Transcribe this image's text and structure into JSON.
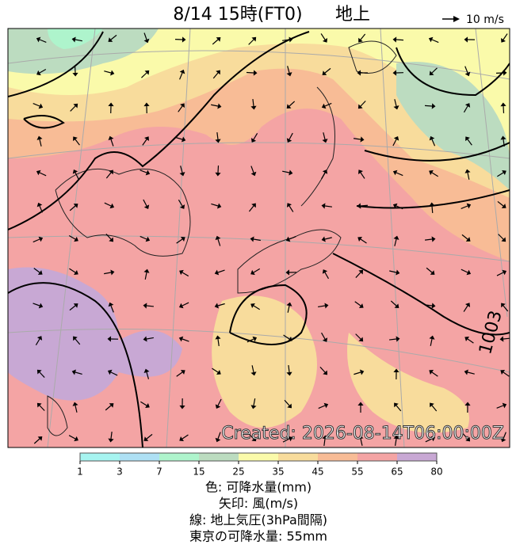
{
  "header": {
    "title": "8/14  15時(FT0)",
    "level": "地上",
    "wind_scale": "10 m/s"
  },
  "map": {
    "isobar_label": "1003",
    "watermark": "Created: 2026-08-14T06:00:00Z"
  },
  "colorbar": {
    "ticks": [
      1,
      3,
      7,
      15,
      25,
      35,
      45,
      55,
      65,
      80
    ],
    "colors": [
      "#a6f4f0",
      "#aee0f4",
      "#aef4cc",
      "#bcdcc0",
      "#fafaaa",
      "#f8dc9c",
      "#f8bc96",
      "#f4a4a4",
      "#c8a8d4"
    ]
  },
  "legend": {
    "lines": [
      "色: 可降水量(mm)",
      "矢印: 風(m/s)",
      "線: 地上気圧(3hPa間隔)",
      "東京の可降水量: 55mm"
    ]
  }
}
